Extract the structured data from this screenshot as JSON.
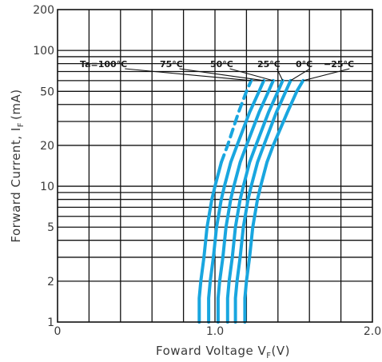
{
  "chart_data": {
    "type": "line",
    "title": "",
    "xlabel": "Foward Voltage V",
    "xlabel_sub": "F",
    "xlabel_unit": "(V)",
    "ylabel": "Forward Current, I",
    "ylabel_sub": "F",
    "ylabel_unit": "(mA)",
    "xlim": [
      0,
      2.0
    ],
    "ylim": [
      1,
      200
    ],
    "yscale": "log",
    "x_ticks": [
      {
        "value": 0,
        "label": "0"
      },
      {
        "value": 1.0,
        "label": "1.0"
      },
      {
        "value": 2.0,
        "label": "2.0"
      }
    ],
    "y_ticks": [
      {
        "value": 1,
        "label": "1"
      },
      {
        "value": 2,
        "label": "2"
      },
      {
        "value": 5,
        "label": "5"
      },
      {
        "value": 10,
        "label": "10"
      },
      {
        "value": 20,
        "label": "20"
      },
      {
        "value": 50,
        "label": "50"
      },
      {
        "value": 100,
        "label": "100"
      },
      {
        "value": 200,
        "label": "200"
      }
    ],
    "grid": true,
    "x_gridlines": [
      0.2,
      0.4,
      0.6,
      0.8,
      1.0,
      1.2,
      1.4,
      1.6,
      1.8
    ],
    "y_gridlines": [
      2,
      3,
      4,
      5,
      6,
      7,
      8,
      9,
      10,
      20,
      30,
      40,
      50,
      60,
      70,
      80,
      90,
      100
    ],
    "series_color": "#19a6df",
    "series": [
      {
        "name": "Ta=100°C",
        "dashed_above": 15,
        "points": [
          [
            0.9,
            1
          ],
          [
            0.9,
            1.5
          ],
          [
            0.91,
            2
          ],
          [
            0.93,
            3
          ],
          [
            0.95,
            5
          ],
          [
            0.98,
            8
          ],
          [
            1.0,
            10
          ],
          [
            1.04,
            15
          ],
          [
            1.08,
            20
          ],
          [
            1.15,
            35
          ],
          [
            1.2,
            50
          ],
          [
            1.23,
            60
          ]
        ]
      },
      {
        "name": "75°C",
        "points": [
          [
            0.96,
            1
          ],
          [
            0.96,
            1.5
          ],
          [
            0.97,
            2
          ],
          [
            0.99,
            3
          ],
          [
            1.01,
            5
          ],
          [
            1.04,
            8
          ],
          [
            1.06,
            10
          ],
          [
            1.1,
            15
          ],
          [
            1.14,
            20
          ],
          [
            1.22,
            35
          ],
          [
            1.28,
            50
          ],
          [
            1.31,
            60
          ]
        ]
      },
      {
        "name": "50°C",
        "points": [
          [
            1.02,
            1
          ],
          [
            1.02,
            1.5
          ],
          [
            1.03,
            2
          ],
          [
            1.05,
            3
          ],
          [
            1.07,
            5
          ],
          [
            1.1,
            8
          ],
          [
            1.12,
            10
          ],
          [
            1.16,
            15
          ],
          [
            1.2,
            20
          ],
          [
            1.28,
            35
          ],
          [
            1.34,
            50
          ],
          [
            1.37,
            60
          ]
        ]
      },
      {
        "name": "25°C",
        "points": [
          [
            1.08,
            1
          ],
          [
            1.08,
            1.5
          ],
          [
            1.09,
            2
          ],
          [
            1.11,
            3
          ],
          [
            1.13,
            5
          ],
          [
            1.16,
            8
          ],
          [
            1.18,
            10
          ],
          [
            1.22,
            15
          ],
          [
            1.26,
            20
          ],
          [
            1.34,
            35
          ],
          [
            1.4,
            50
          ],
          [
            1.43,
            60
          ]
        ]
      },
      {
        "name": "0°C",
        "points": [
          [
            1.13,
            1
          ],
          [
            1.13,
            1.5
          ],
          [
            1.14,
            2
          ],
          [
            1.16,
            3
          ],
          [
            1.18,
            5
          ],
          [
            1.21,
            8
          ],
          [
            1.23,
            10
          ],
          [
            1.27,
            15
          ],
          [
            1.31,
            20
          ],
          [
            1.39,
            35
          ],
          [
            1.45,
            50
          ],
          [
            1.48,
            60
          ]
        ]
      },
      {
        "name": "−25°C",
        "points": [
          [
            1.19,
            1
          ],
          [
            1.19,
            1.5
          ],
          [
            1.2,
            2
          ],
          [
            1.22,
            3
          ],
          [
            1.24,
            5
          ],
          [
            1.27,
            8
          ],
          [
            1.29,
            10
          ],
          [
            1.33,
            15
          ],
          [
            1.37,
            20
          ],
          [
            1.46,
            35
          ],
          [
            1.52,
            50
          ],
          [
            1.56,
            60
          ]
        ]
      }
    ]
  }
}
